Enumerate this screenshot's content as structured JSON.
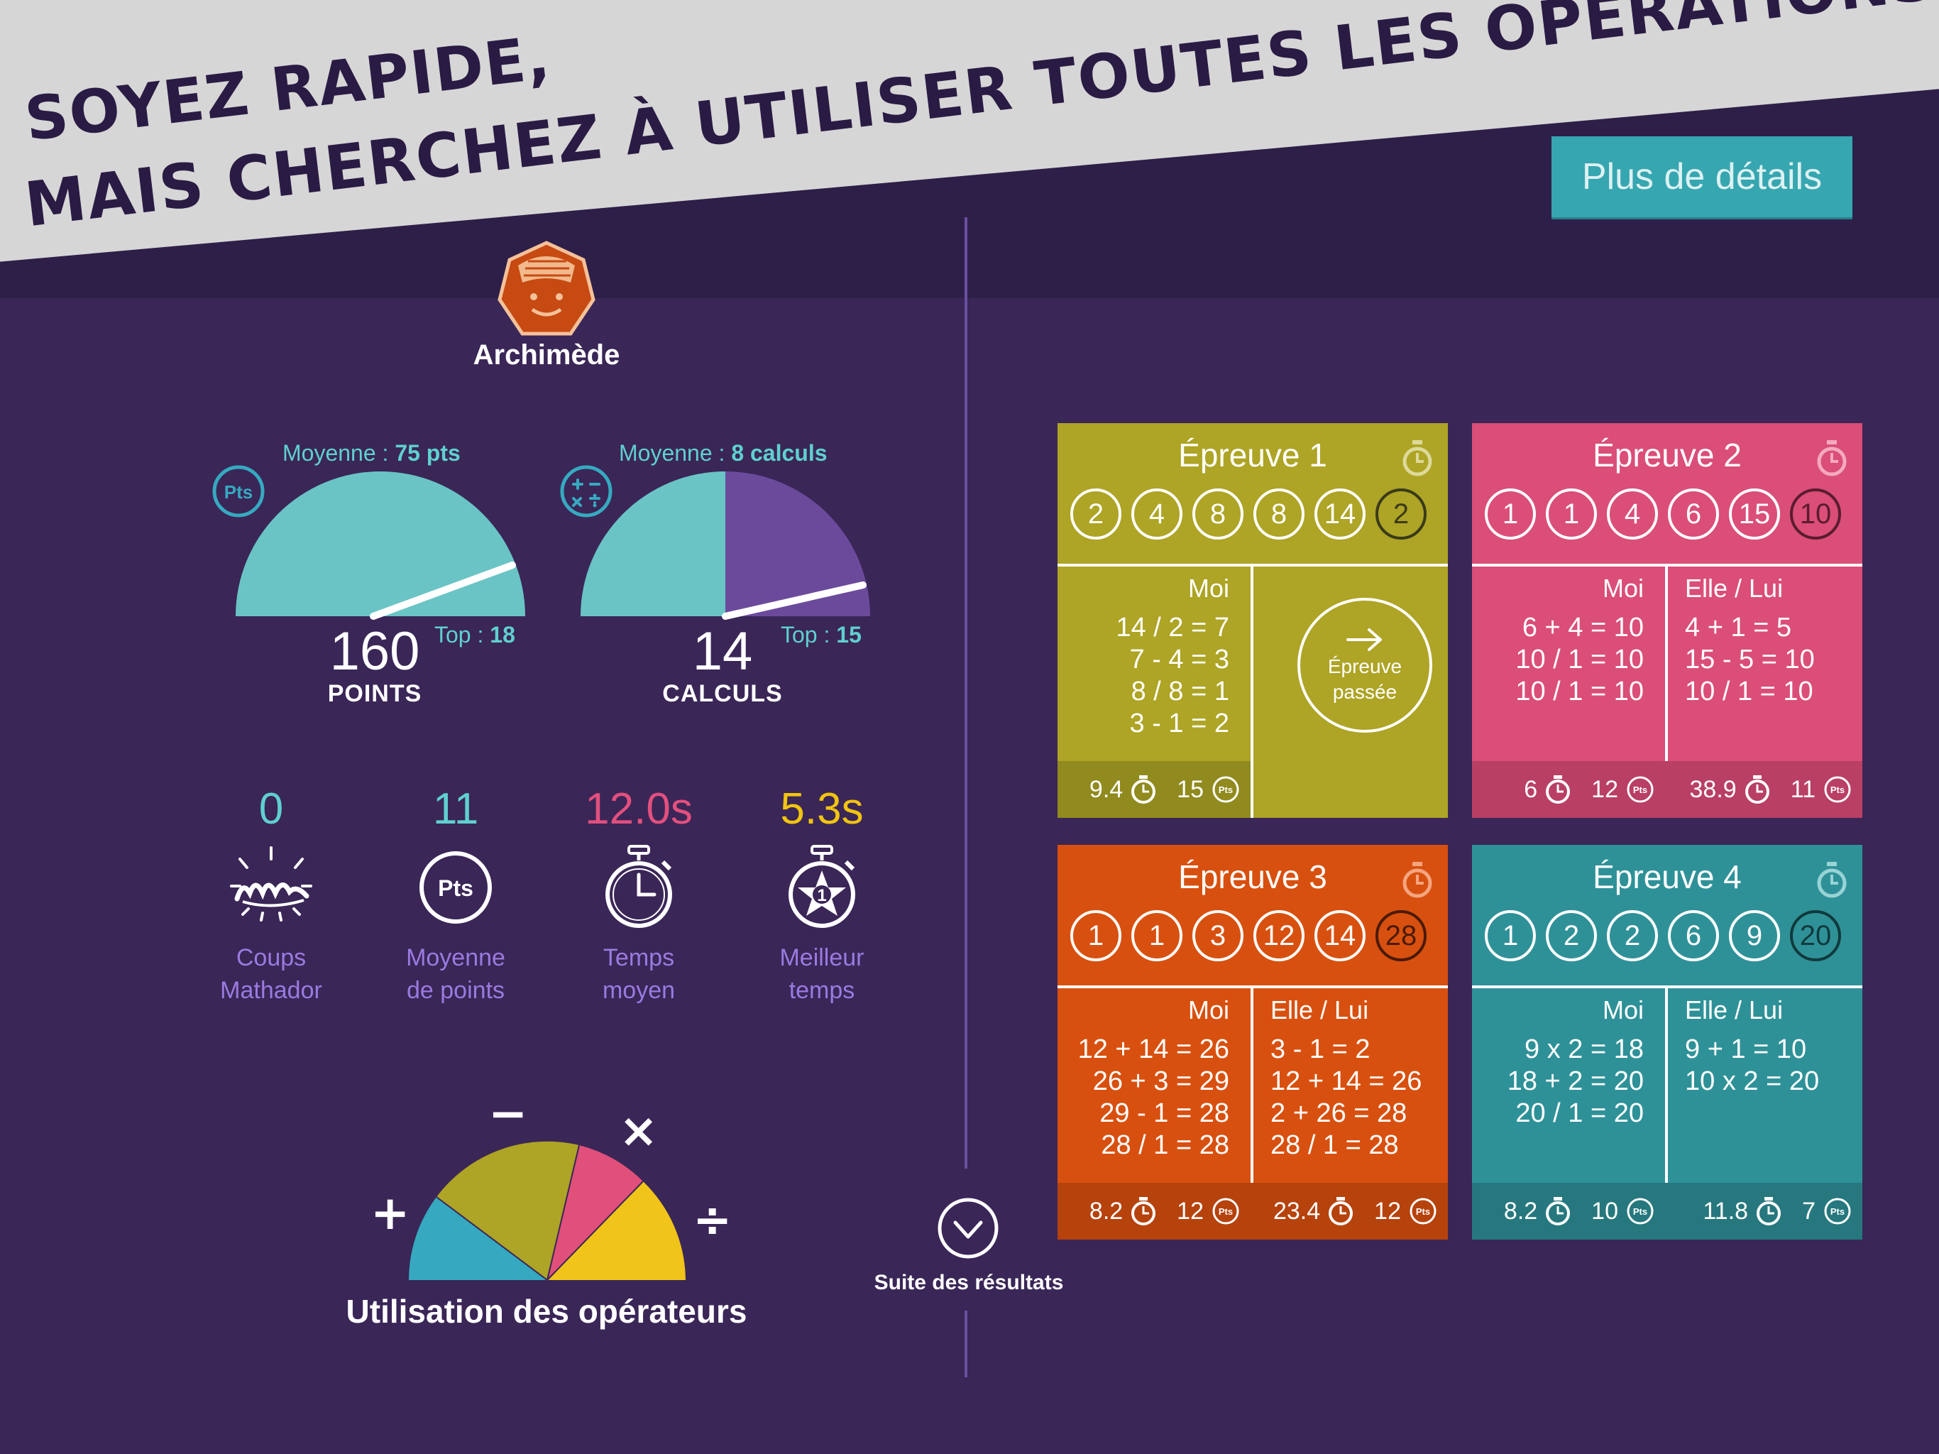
{
  "headline": {
    "line1": "SOYEZ RAPIDE,",
    "line2": "MAIS CHERCHEZ À UTILISER TOUTES LES OPÉRATIONS !"
  },
  "details_button": "Plus de détails",
  "player": {
    "name": "Archimède",
    "avatar_icon": "heptagon-face-icon",
    "avatar_color": "#c74a12"
  },
  "gauges": {
    "points": {
      "avg_label": "Moyenne : ",
      "avg_value": "75 pts",
      "value": "160",
      "unit": "POINTS",
      "top_label": "Top : ",
      "top_value": "18",
      "badge": "Pts",
      "icon": "pts-badge-icon"
    },
    "calculs": {
      "avg_label": "Moyenne : ",
      "avg_value": "8 calculs",
      "value": "14",
      "unit": "CALCULS",
      "top_label": "Top : ",
      "top_value": "15",
      "icon": "operators-badge-icon"
    }
  },
  "stats": [
    {
      "value": "0",
      "label1": "Coups",
      "label2": "Mathador",
      "color": "#5fd0cf",
      "icon": "mathador-logo-icon"
    },
    {
      "value": "11",
      "label1": "Moyenne",
      "label2": "de points",
      "color": "#5fd0cf",
      "icon": "pts-circle-icon",
      "badge": "Pts"
    },
    {
      "value": "12.0s",
      "label1": "Temps",
      "label2": "moyen",
      "color": "#e2507e",
      "icon": "stopwatch-icon"
    },
    {
      "value": "5.3s",
      "label1": "Meilleur",
      "label2": "temps",
      "color": "#f1c40f",
      "icon": "stopwatch-star-icon",
      "badge": "1"
    }
  ],
  "operators": {
    "title": "Utilisation des opérateurs",
    "plus": "+",
    "minus": "−",
    "times": "×",
    "divide": "÷",
    "colors": {
      "plus": "#36a9c0",
      "minus": "#aea425",
      "times": "#e0507a",
      "divide": "#f0c419"
    }
  },
  "suite": {
    "label": "Suite des résultats",
    "icon": "chevron-down-circle-icon"
  },
  "cards": [
    {
      "title": "Épreuve 1",
      "color": "#aea425",
      "footer_color": "#918a1e",
      "target_color": "#3a3a1a",
      "numbers": [
        "2",
        "4",
        "8",
        "8",
        "14"
      ],
      "target": "2",
      "left_header": "Moi",
      "left_lines": [
        "14 / 2 = 7",
        "7 - 4 = 3",
        "8 / 8 = 1",
        "3 - 1 = 2"
      ],
      "pass": {
        "line1": "Épreuve",
        "line2": "passée",
        "icon": "arrow-right-icon"
      },
      "left_time": "9.4",
      "left_pts": "15",
      "pts_badge": "Pts"
    },
    {
      "title": "Épreuve 2",
      "color": "#da4e78",
      "footer_color": "#b93f64",
      "numbers": [
        "1",
        "1",
        "4",
        "6",
        "15"
      ],
      "target": "10",
      "left_header": "Moi",
      "left_lines": [
        "6 + 4 = 10",
        "10 / 1 = 10",
        "10 / 1 = 10"
      ],
      "right_header": "Elle / Lui",
      "right_lines": [
        "4 + 1 = 5",
        "15 - 5 = 10",
        "10 / 1 = 10"
      ],
      "left_time": "6",
      "left_pts": "12",
      "right_time": "38.9",
      "right_pts": "11",
      "pts_badge": "Pts"
    },
    {
      "title": "Épreuve 3",
      "color": "#d8500f",
      "footer_color": "#b6420c",
      "numbers": [
        "1",
        "1",
        "3",
        "12",
        "14"
      ],
      "target": "28",
      "left_header": "Moi",
      "left_lines": [
        "12 + 14 = 26",
        "26 + 3 = 29",
        "29 - 1 = 28",
        "28 / 1 = 28"
      ],
      "right_header": "Elle / Lui",
      "right_lines": [
        "3 - 1 = 2",
        "12 + 14 = 26",
        "2 + 26 = 28",
        "28 / 1 = 28"
      ],
      "left_time": "8.2",
      "left_pts": "12",
      "right_time": "23.4",
      "right_pts": "12",
      "pts_badge": "Pts"
    },
    {
      "title": "Épreuve 4",
      "color": "#2f9198",
      "footer_color": "#26787e",
      "numbers": [
        "1",
        "2",
        "2",
        "6",
        "9"
      ],
      "target": "20",
      "left_header": "Moi",
      "left_lines": [
        "9 x 2 = 18",
        "18 + 2 = 20",
        "20 / 1 = 20"
      ],
      "right_header": "Elle / Lui",
      "right_lines": [
        "9 + 1 = 10",
        "10 x 2 = 20"
      ],
      "left_time": "8.2",
      "left_pts": "10",
      "right_time": "11.8",
      "right_pts": "7",
      "pts_badge": "Pts"
    }
  ]
}
